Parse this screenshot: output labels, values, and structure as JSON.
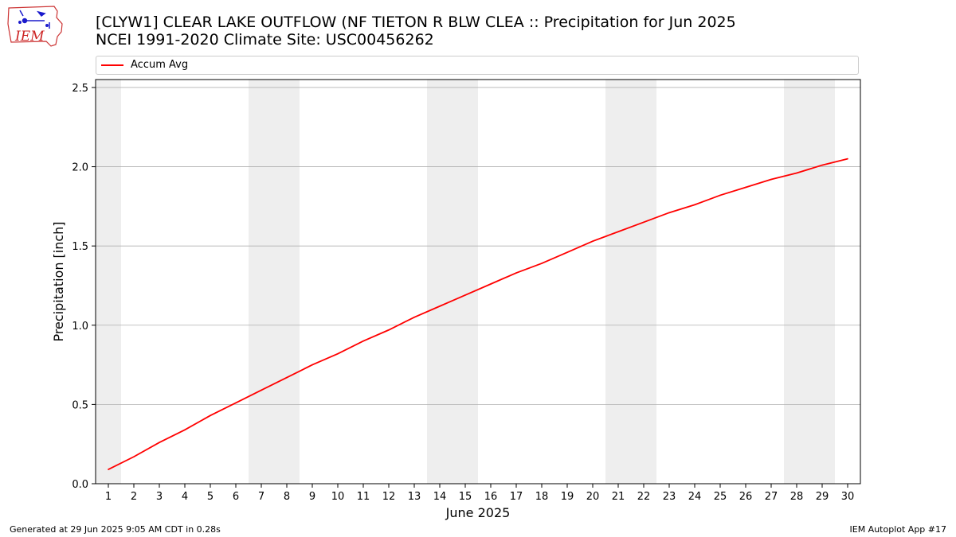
{
  "header": {
    "title_line1": "[CLYW1] CLEAR LAKE OUTFLOW (NF TIETON R BLW CLEA :: Precipitation for Jun 2025",
    "title_line2": "NCEI 1991-2020 Climate Site: USC00456262",
    "logo_text": "IEM"
  },
  "legend": {
    "label": "Accum Avg"
  },
  "footer": {
    "generated": "Generated at 29 Jun 2025 9:05 AM CDT in 0.28s",
    "app": "IEM Autoplot App #17"
  },
  "colors": {
    "line": "#ff0000",
    "weekend_band": "#eeeeee",
    "grid": "#b0b0b0"
  },
  "chart_data": {
    "type": "line",
    "xlabel": "June 2025",
    "ylabel": "Precipitation [inch]",
    "x": [
      1,
      2,
      3,
      4,
      5,
      6,
      7,
      8,
      9,
      10,
      11,
      12,
      13,
      14,
      15,
      16,
      17,
      18,
      19,
      20,
      21,
      22,
      23,
      24,
      25,
      26,
      27,
      28,
      29,
      30
    ],
    "series": [
      {
        "name": "Accum Avg",
        "values": [
          0.09,
          0.17,
          0.26,
          0.34,
          0.43,
          0.51,
          0.59,
          0.67,
          0.75,
          0.82,
          0.9,
          0.97,
          1.05,
          1.12,
          1.19,
          1.26,
          1.33,
          1.39,
          1.46,
          1.53,
          1.59,
          1.65,
          1.71,
          1.76,
          1.82,
          1.87,
          1.92,
          1.96,
          2.01,
          2.05
        ]
      }
    ],
    "ylim": [
      0,
      2.55
    ],
    "xlim": [
      0.5,
      30.5
    ],
    "yticks": [
      0.0,
      0.5,
      1.0,
      1.5,
      2.0,
      2.5
    ],
    "ytick_labels": [
      "0.0",
      "0.5",
      "1.0",
      "1.5",
      "2.0",
      "2.5"
    ],
    "xtick_labels": [
      "1",
      "2",
      "3",
      "4",
      "5",
      "6",
      "7",
      "8",
      "9",
      "10",
      "11",
      "12",
      "13",
      "14",
      "15",
      "16",
      "17",
      "18",
      "19",
      "20",
      "21",
      "22",
      "23",
      "24",
      "25",
      "26",
      "27",
      "28",
      "29",
      "30"
    ],
    "weekend_bands": [
      [
        0.5,
        1.5
      ],
      [
        6.5,
        8.5
      ],
      [
        13.5,
        15.5
      ],
      [
        20.5,
        22.5
      ],
      [
        27.5,
        29.5
      ]
    ],
    "grid": "horizontal",
    "legend_position": "top"
  }
}
